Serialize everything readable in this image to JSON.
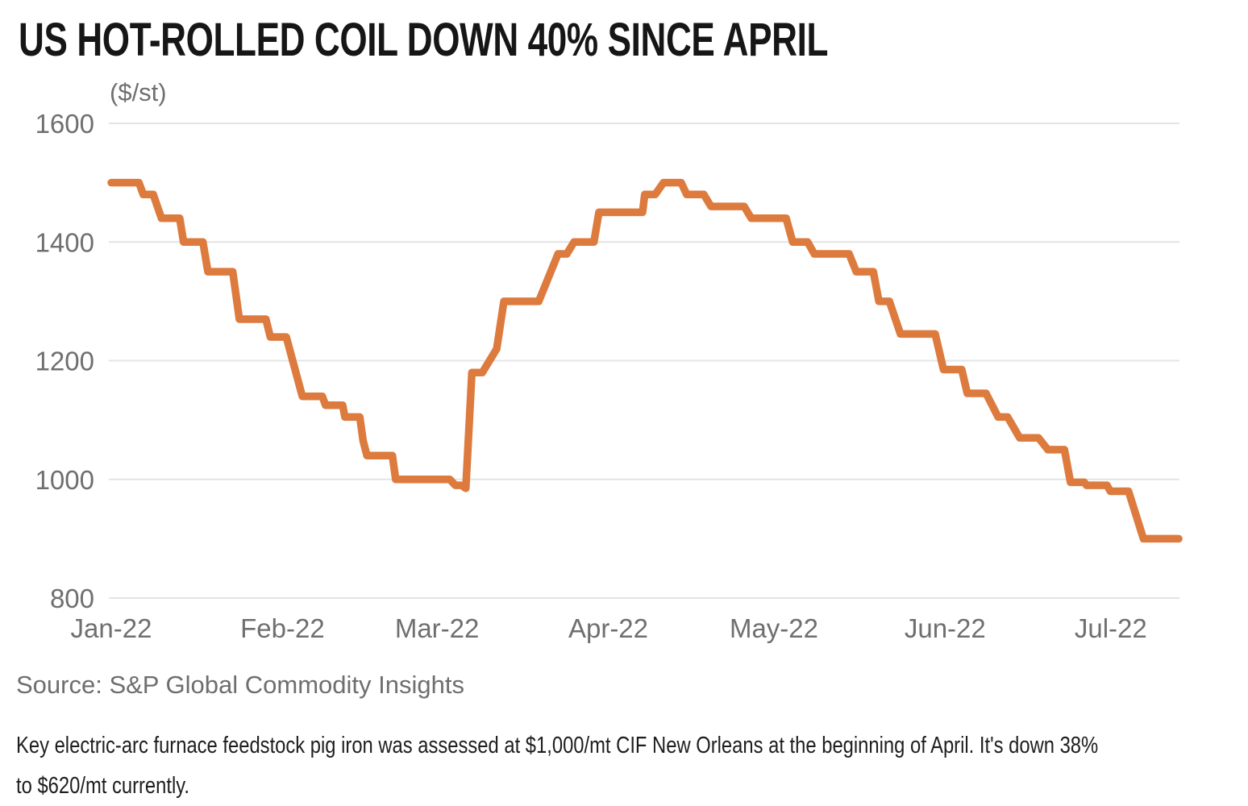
{
  "chart_data": {
    "type": "line",
    "title": "US HOT-ROLLED COIL DOWN 40% SINCE APRIL",
    "unit_label": "($/st)",
    "ylabel": "$/st",
    "ylim": [
      800,
      1600
    ],
    "yticks": [
      1600,
      1400,
      1200,
      1000,
      800
    ],
    "x_unit": "days since Jan 1 2022",
    "xticks": [
      {
        "day": 0,
        "label": "Jan-22"
      },
      {
        "day": 31,
        "label": "Feb-22"
      },
      {
        "day": 59,
        "label": "Mar-22"
      },
      {
        "day": 90,
        "label": "Apr-22"
      },
      {
        "day": 120,
        "label": "May-22"
      },
      {
        "day": 151,
        "label": "Jun-22"
      },
      {
        "day": 181,
        "label": "Jul-22"
      }
    ],
    "grid": "horizontal-only",
    "legend": "none",
    "series": [
      {
        "color": "#dd7b3e",
        "points": [
          [
            0,
            1500
          ],
          [
            5,
            1500
          ],
          [
            5.8,
            1480
          ],
          [
            7.6,
            1480
          ],
          [
            9.1,
            1440
          ],
          [
            12.4,
            1440
          ],
          [
            13.1,
            1400
          ],
          [
            16.6,
            1400
          ],
          [
            17.5,
            1350
          ],
          [
            22,
            1350
          ],
          [
            23.2,
            1270
          ],
          [
            28,
            1270
          ],
          [
            28.8,
            1240
          ],
          [
            31.7,
            1240
          ],
          [
            34.6,
            1140
          ],
          [
            38.2,
            1140
          ],
          [
            38.8,
            1125
          ],
          [
            41.9,
            1125
          ],
          [
            42.3,
            1105
          ],
          [
            45,
            1105
          ],
          [
            45.6,
            1065
          ],
          [
            46.3,
            1040
          ],
          [
            50.9,
            1040
          ],
          [
            51.5,
            1000
          ],
          [
            61.3,
            1000
          ],
          [
            62.3,
            990
          ],
          [
            63.4,
            990
          ],
          [
            64.2,
            985
          ],
          [
            65.3,
            1180
          ],
          [
            67.2,
            1180
          ],
          [
            69.8,
            1220
          ],
          [
            71.1,
            1300
          ],
          [
            77.4,
            1300
          ],
          [
            80.9,
            1380
          ],
          [
            82.5,
            1380
          ],
          [
            83.8,
            1400
          ],
          [
            87.4,
            1400
          ],
          [
            88.3,
            1450
          ],
          [
            96.2,
            1450
          ],
          [
            96.6,
            1480
          ],
          [
            98.5,
            1480
          ],
          [
            100,
            1500
          ],
          [
            103.2,
            1500
          ],
          [
            104.2,
            1480
          ],
          [
            107.3,
            1480
          ],
          [
            108.6,
            1460
          ],
          [
            114.6,
            1460
          ],
          [
            115.9,
            1440
          ],
          [
            122.2,
            1440
          ],
          [
            123.4,
            1400
          ],
          [
            126.1,
            1400
          ],
          [
            127.3,
            1380
          ],
          [
            133.6,
            1380
          ],
          [
            134.9,
            1350
          ],
          [
            138,
            1350
          ],
          [
            139,
            1300
          ],
          [
            140.9,
            1300
          ],
          [
            142.9,
            1245
          ],
          [
            149.2,
            1245
          ],
          [
            150.7,
            1185
          ],
          [
            154,
            1185
          ],
          [
            155,
            1145
          ],
          [
            158.4,
            1145
          ],
          [
            160.6,
            1105
          ],
          [
            162.3,
            1105
          ],
          [
            164.5,
            1070
          ],
          [
            167.9,
            1070
          ],
          [
            169.6,
            1050
          ],
          [
            172.6,
            1050
          ],
          [
            173.7,
            995
          ],
          [
            176.2,
            995
          ],
          [
            176.6,
            990
          ],
          [
            180.3,
            990
          ],
          [
            180.9,
            980
          ],
          [
            184.2,
            980
          ],
          [
            186.9,
            900
          ],
          [
            193.3,
            900
          ]
        ]
      }
    ],
    "colors": {
      "line": "#dd7b3e",
      "gridline": "#e4e4e4",
      "axis_text": "#6f6f6f",
      "title_text": "#161616",
      "source_text": "#6e6e6e",
      "note_text": "#1e1e1e",
      "background": "#ffffff"
    },
    "source": "Source: S&P Global Commodity Insights",
    "note_lines": [
      "Key electric-arc furnace feedstock pig iron was assessed at $1,000/mt CIF New Orleans at the beginning of April. It's down 38%",
      "to $620/mt currently."
    ]
  }
}
